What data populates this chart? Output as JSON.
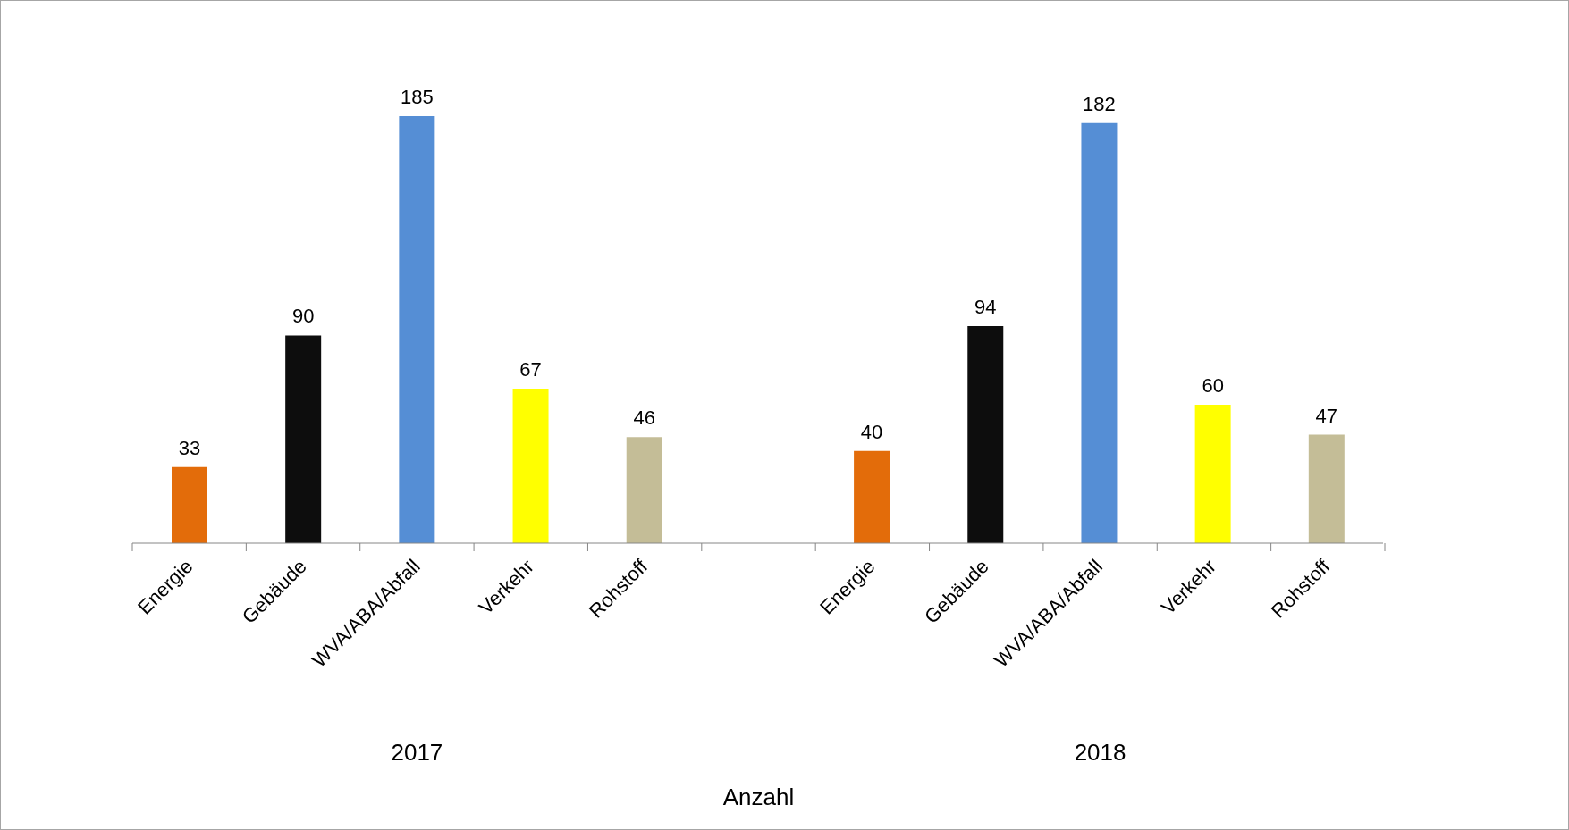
{
  "chart_data": {
    "type": "bar",
    "xlabel": "Anzahl",
    "categories": [
      "Energie",
      "Gebäude",
      "WVA/ABA/Abfall",
      "Verkehr",
      "Rohstoff",
      null,
      "Energie",
      "Gebäude",
      "WVA/ABA/Abfall",
      "Verkehr",
      "Rohstoff"
    ],
    "values": [
      33,
      90,
      185,
      67,
      46,
      null,
      40,
      94,
      182,
      60,
      47
    ],
    "colors": [
      "#e36c0a",
      "#0d0d0d",
      "#558ed5",
      "#ffff00",
      "#c4bd97",
      null,
      "#e36c0a",
      "#0d0d0d",
      "#558ed5",
      "#ffff00",
      "#c4bd97"
    ],
    "annotations": [
      "2017",
      "2018"
    ],
    "data_labels": true,
    "grid": false,
    "legend": false
  }
}
